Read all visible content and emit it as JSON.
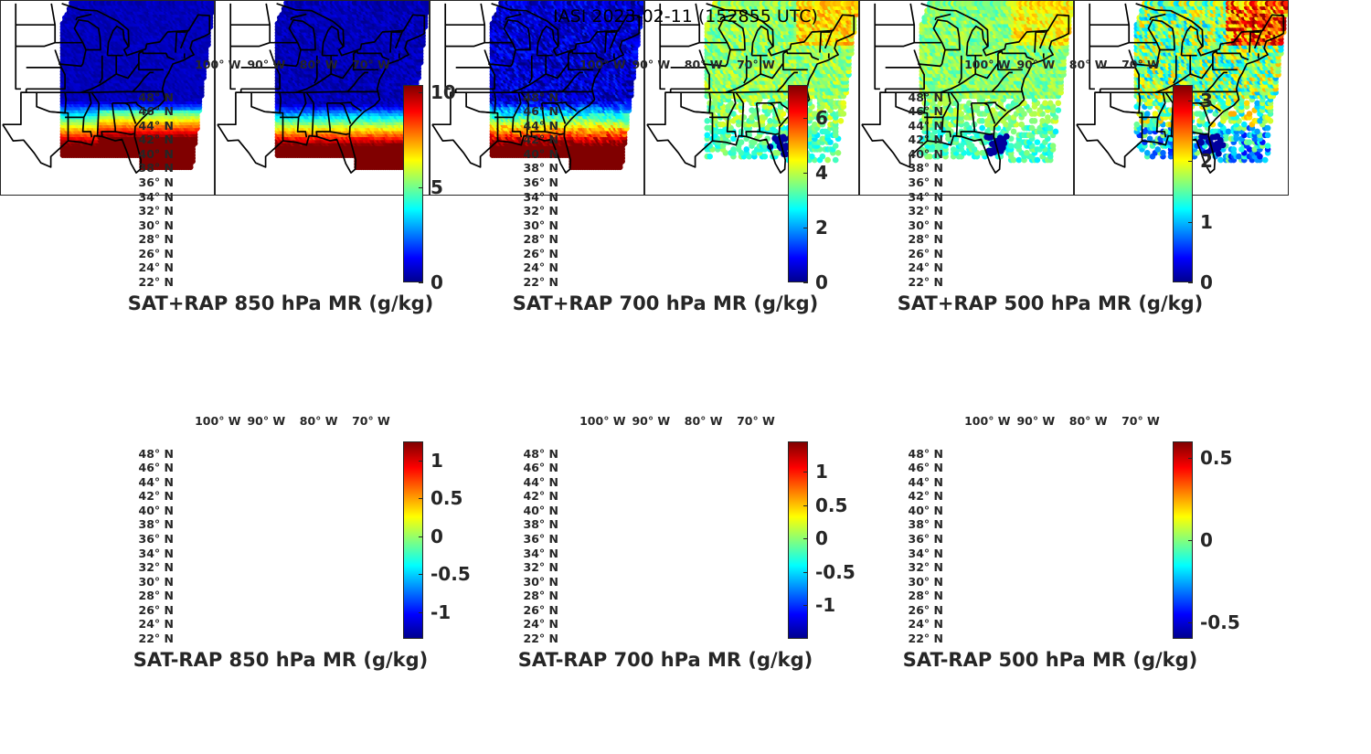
{
  "title": "IASI 2023-02-11 (152855 UTC)",
  "lon_ticks": [
    "100° W",
    "90° W",
    "80° W",
    "70° W"
  ],
  "lat_ticks": [
    "48° N",
    "46° N",
    "44° N",
    "42° N",
    "40° N",
    "38° N",
    "36° N",
    "34° N",
    "32° N",
    "30° N",
    "28° N",
    "26° N",
    "24° N",
    "22° N"
  ],
  "colormap": [
    "#00008f",
    "#0000ff",
    "#00ffff",
    "#ffff00",
    "#ff0000",
    "#800000"
  ],
  "panels": [
    {
      "label": "SAT+RAP 850 hPa MR (g/kg)",
      "clim": [
        0,
        10.4
      ],
      "ticks": [
        "0",
        "5",
        "10"
      ],
      "tick_values": [
        0,
        5,
        10
      ],
      "kind": "total",
      "level": 850
    },
    {
      "label": "SAT+RAP 700 hPa MR (g/kg)",
      "clim": [
        0,
        7.2
      ],
      "ticks": [
        "0",
        "2",
        "4",
        "6"
      ],
      "tick_values": [
        0,
        2,
        4,
        6
      ],
      "kind": "total",
      "level": 700
    },
    {
      "label": "SAT+RAP 500 hPa MR (g/kg)",
      "clim": [
        0,
        3.25
      ],
      "ticks": [
        "0",
        "1",
        "2",
        "3"
      ],
      "tick_values": [
        0,
        1,
        2,
        3
      ],
      "kind": "total",
      "level": 500
    },
    {
      "label": "SAT-RAP 850 hPa MR (g/kg)",
      "clim": [
        -1.35,
        1.25
      ],
      "ticks": [
        "-1",
        "-0.5",
        "0",
        "0.5",
        "1"
      ],
      "tick_values": [
        -1,
        -0.5,
        0,
        0.5,
        1
      ],
      "kind": "diff",
      "level": 850
    },
    {
      "label": "SAT-RAP 700 hPa MR (g/kg)",
      "clim": [
        -1.5,
        1.45
      ],
      "ticks": [
        "-1",
        "-0.5",
        "0",
        "0.5",
        "1"
      ],
      "tick_values": [
        -1,
        -0.5,
        0,
        0.5,
        1
      ],
      "kind": "diff",
      "level": 700
    },
    {
      "label": "SAT-RAP 500 hPa MR (g/kg)",
      "clim": [
        -0.6,
        0.6
      ],
      "ticks": [
        "-0.5",
        "0",
        "0.5"
      ],
      "tick_values": [
        -0.5,
        0,
        0.5
      ],
      "kind": "diff",
      "level": 500
    }
  ]
}
